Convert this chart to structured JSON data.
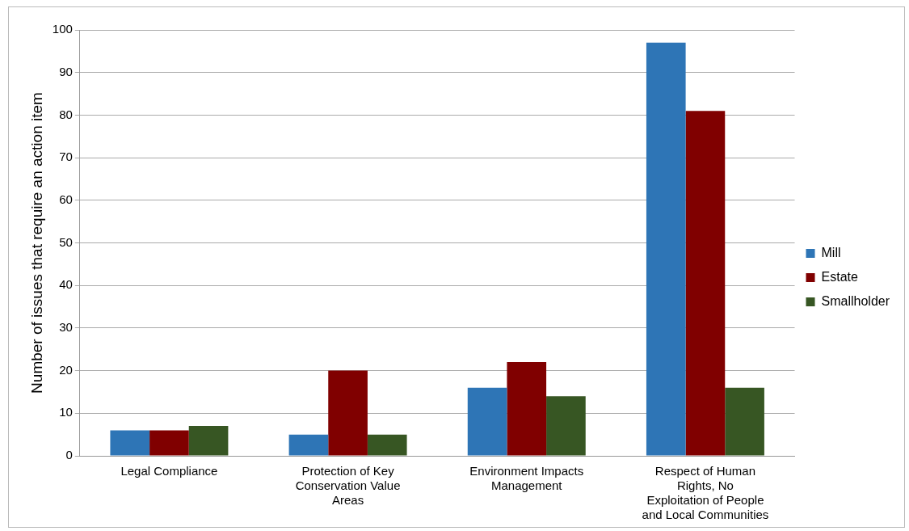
{
  "chart_data": {
    "type": "bar",
    "ylabel": "Number of issues that require an action item",
    "categories": [
      "Legal Compliance",
      "Protection of Key Conservation Value Areas",
      "Environment Impacts Management",
      "Respect of Human Rights, No Exploitation of People and Local Communities"
    ],
    "series": [
      {
        "name": "Mill",
        "color": "#2e75b6",
        "values": [
          6,
          5,
          16,
          97
        ]
      },
      {
        "name": "Estate",
        "color": "#800000",
        "values": [
          6,
          20,
          22,
          81
        ]
      },
      {
        "name": "Smallholder",
        "color": "#375623",
        "values": [
          7,
          5,
          14,
          16
        ]
      }
    ],
    "ylim": [
      0,
      100
    ],
    "yticks": [
      0,
      10,
      20,
      30,
      40,
      50,
      60,
      70,
      80,
      90,
      100
    ],
    "grid": "y",
    "legend": "right"
  }
}
